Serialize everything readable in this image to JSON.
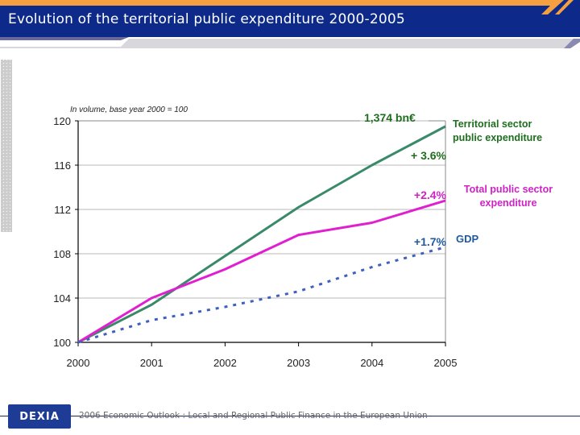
{
  "header": {
    "title": "Evolution of the territorial public expenditure 2000-2005"
  },
  "colors": {
    "header_bg": "#0d2a8a",
    "header_accent": "#f5a040",
    "territorial": "#3a8a6a",
    "total": "#e020d0",
    "gdp": "#4060c0",
    "territorial_label": "#1e6e1e",
    "total_label": "#d020c8",
    "gdp_label": "#1e5aa0"
  },
  "chart_data": {
    "type": "line",
    "title": "Evolution of the territorial public expenditure 2000-2005",
    "subtitle": "In volume, base year 2000 = 100",
    "xlabel": "",
    "ylabel": "",
    "x": [
      "2000",
      "2001",
      "2002",
      "2003",
      "2004",
      "2005"
    ],
    "yticks": [
      "100",
      "104",
      "108",
      "112",
      "116",
      "120"
    ],
    "ylim": [
      100,
      120
    ],
    "grid": true,
    "series": [
      {
        "name": "Territorial sector public expenditure",
        "style": "solid",
        "values": [
          100,
          103.4,
          107.8,
          112.2,
          116.0,
          119.5
        ],
        "end_label": "+ 3.6%"
      },
      {
        "name": "Total public sector expenditure",
        "style": "solid",
        "values": [
          100,
          104.0,
          106.6,
          109.7,
          110.8,
          112.8
        ],
        "end_label": "+2.4%"
      },
      {
        "name": "GDP",
        "style": "dotted",
        "values": [
          100,
          102.0,
          103.2,
          104.6,
          106.8,
          108.6
        ],
        "end_label": "+1.7%"
      }
    ],
    "annotations": [
      "1,374 bn€"
    ],
    "legend": {
      "placement": "right",
      "entries": [
        "Territorial sector public expenditure",
        "Total public sector expenditure",
        "GDP"
      ]
    }
  },
  "labels": {
    "subtitle": "In volume, base year 2000 = 100",
    "annotation": "1,374 bn€",
    "legend_territorial_1": "Territorial sector",
    "legend_territorial_2": "public expenditure",
    "legend_total_1": "Total public sector",
    "legend_total_2": "expenditure",
    "legend_gdp": "GDP",
    "end_territorial": "+ 3.6%",
    "end_total": "+2.4%",
    "end_gdp": "+1.7%"
  },
  "footer": {
    "logo": "DEXIA",
    "text": "2006 Economic Outlook : Local and Regional Public Finance in the European Union"
  }
}
